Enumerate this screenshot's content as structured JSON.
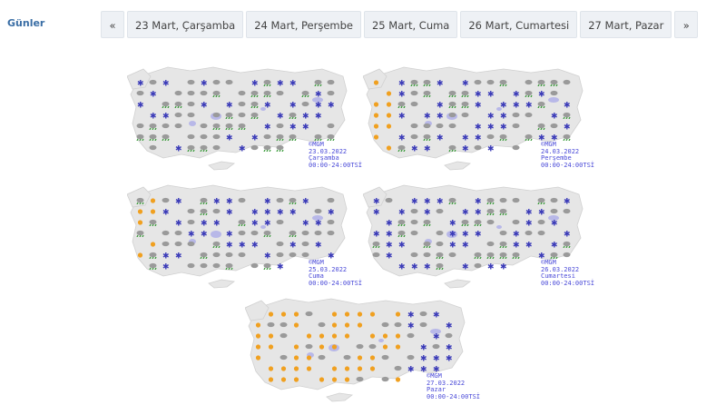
{
  "days_label": "Günler",
  "pager": {
    "prev": "«",
    "next": "»",
    "days": [
      "23 Mart, Çarşamba",
      "24 Mart, Perşembe",
      "25 Mart, Cuma",
      "26 Mart, Cumartesi",
      "27 Mart, Pazar"
    ]
  },
  "maps": [
    {
      "source": "©MGM",
      "date": "23.03.2022",
      "day": "Çarşamba",
      "range": "00:00-24:00TSİ",
      "icons": "mix-snow-rain"
    },
    {
      "source": "©MGM",
      "date": "24.03.2022",
      "day": "Perşembe",
      "range": "00:00-24:00TSİ",
      "icons": "mix-snow-partly"
    },
    {
      "source": "©MGM",
      "date": "25.03.2022",
      "day": "Cuma",
      "range": "00:00-24:00TSİ",
      "icons": "mix-cloudy-snow"
    },
    {
      "source": "©MGM",
      "date": "26.03.2022",
      "day": "Cumartesi",
      "range": "00:00-24:00TSİ",
      "icons": "mix-snow-rain"
    },
    {
      "source": "©MGM",
      "date": "27.03.2022",
      "day": "Pazar",
      "range": "00:00-24:00TSİ",
      "icons": "sunny-west-snow-east"
    }
  ],
  "colors": {
    "snow": "#3b3bb8",
    "rain": "#3a9a3a",
    "sun": "#f0a020",
    "cloud": "#9a9a9a",
    "land": "#e6e6e6",
    "lake": "#b8b8e8"
  }
}
